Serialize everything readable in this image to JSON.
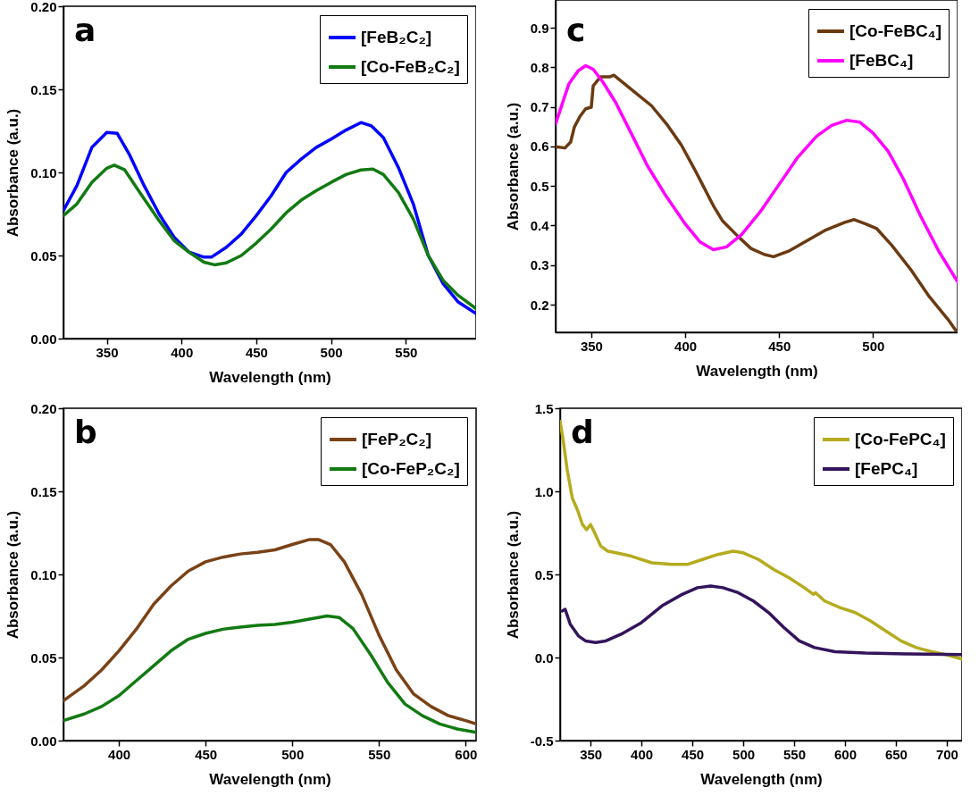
{
  "chart_data": [
    {
      "type": "line",
      "title": "a",
      "xlabel": "Wavelength (nm)",
      "ylabel": "Absorbance (a.u.)",
      "xlim": [
        321,
        597
      ],
      "xticks": [
        350,
        400,
        450,
        500,
        550
      ],
      "ylim": [
        0,
        0.2
      ],
      "yticks": [
        {
          "value": 0,
          "label": "0.00"
        },
        0.05,
        {
          "value": 0.1,
          "label": "0.10"
        },
        0.15,
        {
          "value": 0.2,
          "label": "0.20"
        }
      ],
      "legend": "top right",
      "series": [
        {
          "name": "[FeB₂C₂]",
          "color": "#0000ff",
          "x": [
            321,
            330,
            340,
            350,
            357,
            365,
            375,
            385,
            395,
            405,
            415,
            420,
            430,
            440,
            450,
            460,
            470,
            480,
            490,
            500,
            510,
            520,
            527,
            535,
            545,
            555,
            565,
            575,
            585,
            597
          ],
          "values": [
            0.077,
            0.092,
            0.115,
            0.124,
            0.1235,
            0.111,
            0.092,
            0.075,
            0.061,
            0.052,
            0.049,
            0.049,
            0.055,
            0.063,
            0.074,
            0.086,
            0.1,
            0.108,
            0.115,
            0.12,
            0.1255,
            0.13,
            0.128,
            0.121,
            0.103,
            0.081,
            0.05,
            0.033,
            0.022,
            0.015
          ]
        },
        {
          "name": "[Co-FeB₂C₂]",
          "color": "#127a12",
          "x": [
            321,
            330,
            340,
            350,
            355,
            362,
            372,
            385,
            395,
            405,
            415,
            422,
            430,
            440,
            450,
            460,
            470,
            480,
            490,
            500,
            510,
            520,
            528,
            535,
            545,
            555,
            565,
            575,
            585,
            597
          ],
          "values": [
            0.074,
            0.081,
            0.094,
            0.1025,
            0.1044,
            0.1015,
            0.088,
            0.071,
            0.059,
            0.052,
            0.046,
            0.0444,
            0.0456,
            0.05,
            0.0575,
            0.066,
            0.0757,
            0.0833,
            0.089,
            0.094,
            0.0987,
            0.1015,
            0.102,
            0.0987,
            0.088,
            0.072,
            0.05,
            0.035,
            0.026,
            0.018
          ]
        }
      ]
    },
    {
      "type": "line",
      "title": "c",
      "xlabel": "Wavelength (nm)",
      "ylabel": "Absorbance (a.u.)",
      "xlim": [
        331,
        545
      ],
      "xticks": [
        350,
        400,
        450,
        500
      ],
      "ylim": [
        0.13,
        0.97
      ],
      "yticks": [
        0.2,
        0.3,
        0.4,
        0.5,
        0.6,
        0.7,
        0.8,
        0.9
      ],
      "legend": "top right",
      "series": [
        {
          "name": "[Co-FeBC₄]",
          "color": "#6b3a12",
          "x": [
            331,
            336,
            339,
            341,
            344,
            347,
            350,
            351,
            355,
            360,
            362,
            368,
            375,
            382,
            390,
            398,
            405,
            410,
            415,
            420,
            428,
            435,
            442,
            447,
            455,
            465,
            475,
            485,
            490,
            496,
            502,
            510,
            520,
            530,
            540,
            544
          ],
          "values": [
            0.599,
            0.596,
            0.611,
            0.649,
            0.676,
            0.695,
            0.699,
            0.753,
            0.776,
            0.776,
            0.78,
            0.757,
            0.73,
            0.703,
            0.657,
            0.603,
            0.542,
            0.496,
            0.45,
            0.411,
            0.373,
            0.342,
            0.327,
            0.321,
            0.335,
            0.362,
            0.389,
            0.408,
            0.415,
            0.404,
            0.392,
            0.35,
            0.289,
            0.22,
            0.162,
            0.135
          ]
        },
        {
          "name": "[FeBC₄]",
          "color": "#ff00ff",
          "x": [
            331,
            338,
            343,
            347,
            351,
            356,
            363,
            372,
            380,
            390,
            400,
            408,
            415,
            422,
            430,
            440,
            450,
            460,
            470,
            478,
            486,
            493,
            500,
            508,
            516,
            525,
            535,
            545
          ],
          "values": [
            0.657,
            0.757,
            0.791,
            0.804,
            0.795,
            0.764,
            0.711,
            0.626,
            0.55,
            0.473,
            0.404,
            0.358,
            0.339,
            0.346,
            0.377,
            0.435,
            0.504,
            0.573,
            0.626,
            0.653,
            0.666,
            0.661,
            0.634,
            0.588,
            0.519,
            0.427,
            0.335,
            0.258
          ]
        }
      ]
    },
    {
      "type": "line",
      "title": "b",
      "xlabel": "Wavelength (nm)",
      "ylabel": "Absorbance (a.u.)",
      "xlim": [
        368,
        606
      ],
      "xticks": [
        400,
        450,
        500,
        550,
        600
      ],
      "ylim": [
        0,
        0.2
      ],
      "yticks": [
        {
          "value": 0,
          "label": "0.00"
        },
        0.05,
        {
          "value": 0.1,
          "label": "0.10"
        },
        0.15,
        {
          "value": 0.2,
          "label": "0.20"
        }
      ],
      "legend": "top right",
      "series": [
        {
          "name": "[FeP₂C₂]",
          "color": "#7a4216",
          "x": [
            368,
            380,
            390,
            400,
            410,
            420,
            430,
            440,
            450,
            460,
            470,
            480,
            490,
            500,
            510,
            515,
            522,
            530,
            540,
            550,
            560,
            570,
            580,
            590,
            600,
            606
          ],
          "values": [
            0.024,
            0.033,
            0.0425,
            0.054,
            0.067,
            0.082,
            0.093,
            0.102,
            0.1076,
            0.1104,
            0.1123,
            0.1133,
            0.1148,
            0.118,
            0.121,
            0.121,
            0.118,
            0.1076,
            0.088,
            0.0635,
            0.0425,
            0.028,
            0.0205,
            0.015,
            0.012,
            0.01
          ]
        },
        {
          "name": "[Co-FeP₂C₂]",
          "color": "#127a12",
          "x": [
            368,
            380,
            390,
            400,
            410,
            420,
            430,
            440,
            450,
            460,
            470,
            480,
            490,
            500,
            510,
            520,
            527,
            535,
            545,
            555,
            565,
            575,
            585,
            595,
            606
          ],
          "values": [
            0.012,
            0.016,
            0.0205,
            0.027,
            0.036,
            0.045,
            0.054,
            0.061,
            0.0645,
            0.067,
            0.0683,
            0.0693,
            0.0699,
            0.0712,
            0.0731,
            0.075,
            0.0741,
            0.0674,
            0.052,
            0.035,
            0.022,
            0.015,
            0.01,
            0.007,
            0.005
          ]
        }
      ]
    },
    {
      "type": "line",
      "title": "d",
      "xlabel": "Wavelength (nm)",
      "ylabel": "Absorbance (a.u.)",
      "xlim": [
        320,
        715
      ],
      "xticks": [
        350,
        400,
        450,
        500,
        550,
        600,
        650,
        700
      ],
      "ylim": [
        -0.5,
        1.5
      ],
      "yticks": [
        -0.5,
        {
          "value": 0,
          "label": "0.0"
        },
        0.5,
        {
          "value": 1,
          "label": "1.0"
        },
        1.5
      ],
      "legend": "top right",
      "series": [
        {
          "name": "[Co-FePC₄]",
          "color": "#b5ab1e",
          "x": [
            320,
            323,
            327,
            332,
            337,
            342,
            346,
            350,
            354,
            360,
            367,
            375,
            390,
            410,
            430,
            445,
            460,
            475,
            490,
            500,
            515,
            530,
            545,
            560,
            569,
            571,
            580,
            595,
            610,
            625,
            640,
            655,
            670,
            685,
            700,
            715
          ],
          "values": [
            1.42,
            1.31,
            1.13,
            0.96,
            0.89,
            0.8,
            0.77,
            0.8,
            0.75,
            0.67,
            0.64,
            0.63,
            0.61,
            0.57,
            0.56,
            0.56,
            0.59,
            0.62,
            0.64,
            0.63,
            0.59,
            0.53,
            0.48,
            0.42,
            0.38,
            0.39,
            0.34,
            0.3,
            0.27,
            0.22,
            0.16,
            0.1,
            0.06,
            0.035,
            0.016,
            -0.01
          ]
        },
        {
          "name": "[FePC₄]",
          "color": "#33145c",
          "x": [
            322,
            325,
            330,
            338,
            345,
            355,
            365,
            380,
            400,
            420,
            440,
            455,
            468,
            480,
            495,
            510,
            525,
            540,
            555,
            570,
            590,
            620,
            660,
            715
          ],
          "values": [
            0.28,
            0.29,
            0.2,
            0.13,
            0.1,
            0.09,
            0.1,
            0.14,
            0.21,
            0.31,
            0.38,
            0.42,
            0.43,
            0.42,
            0.39,
            0.34,
            0.27,
            0.18,
            0.1,
            0.06,
            0.035,
            0.027,
            0.022,
            0.018
          ]
        }
      ]
    }
  ]
}
